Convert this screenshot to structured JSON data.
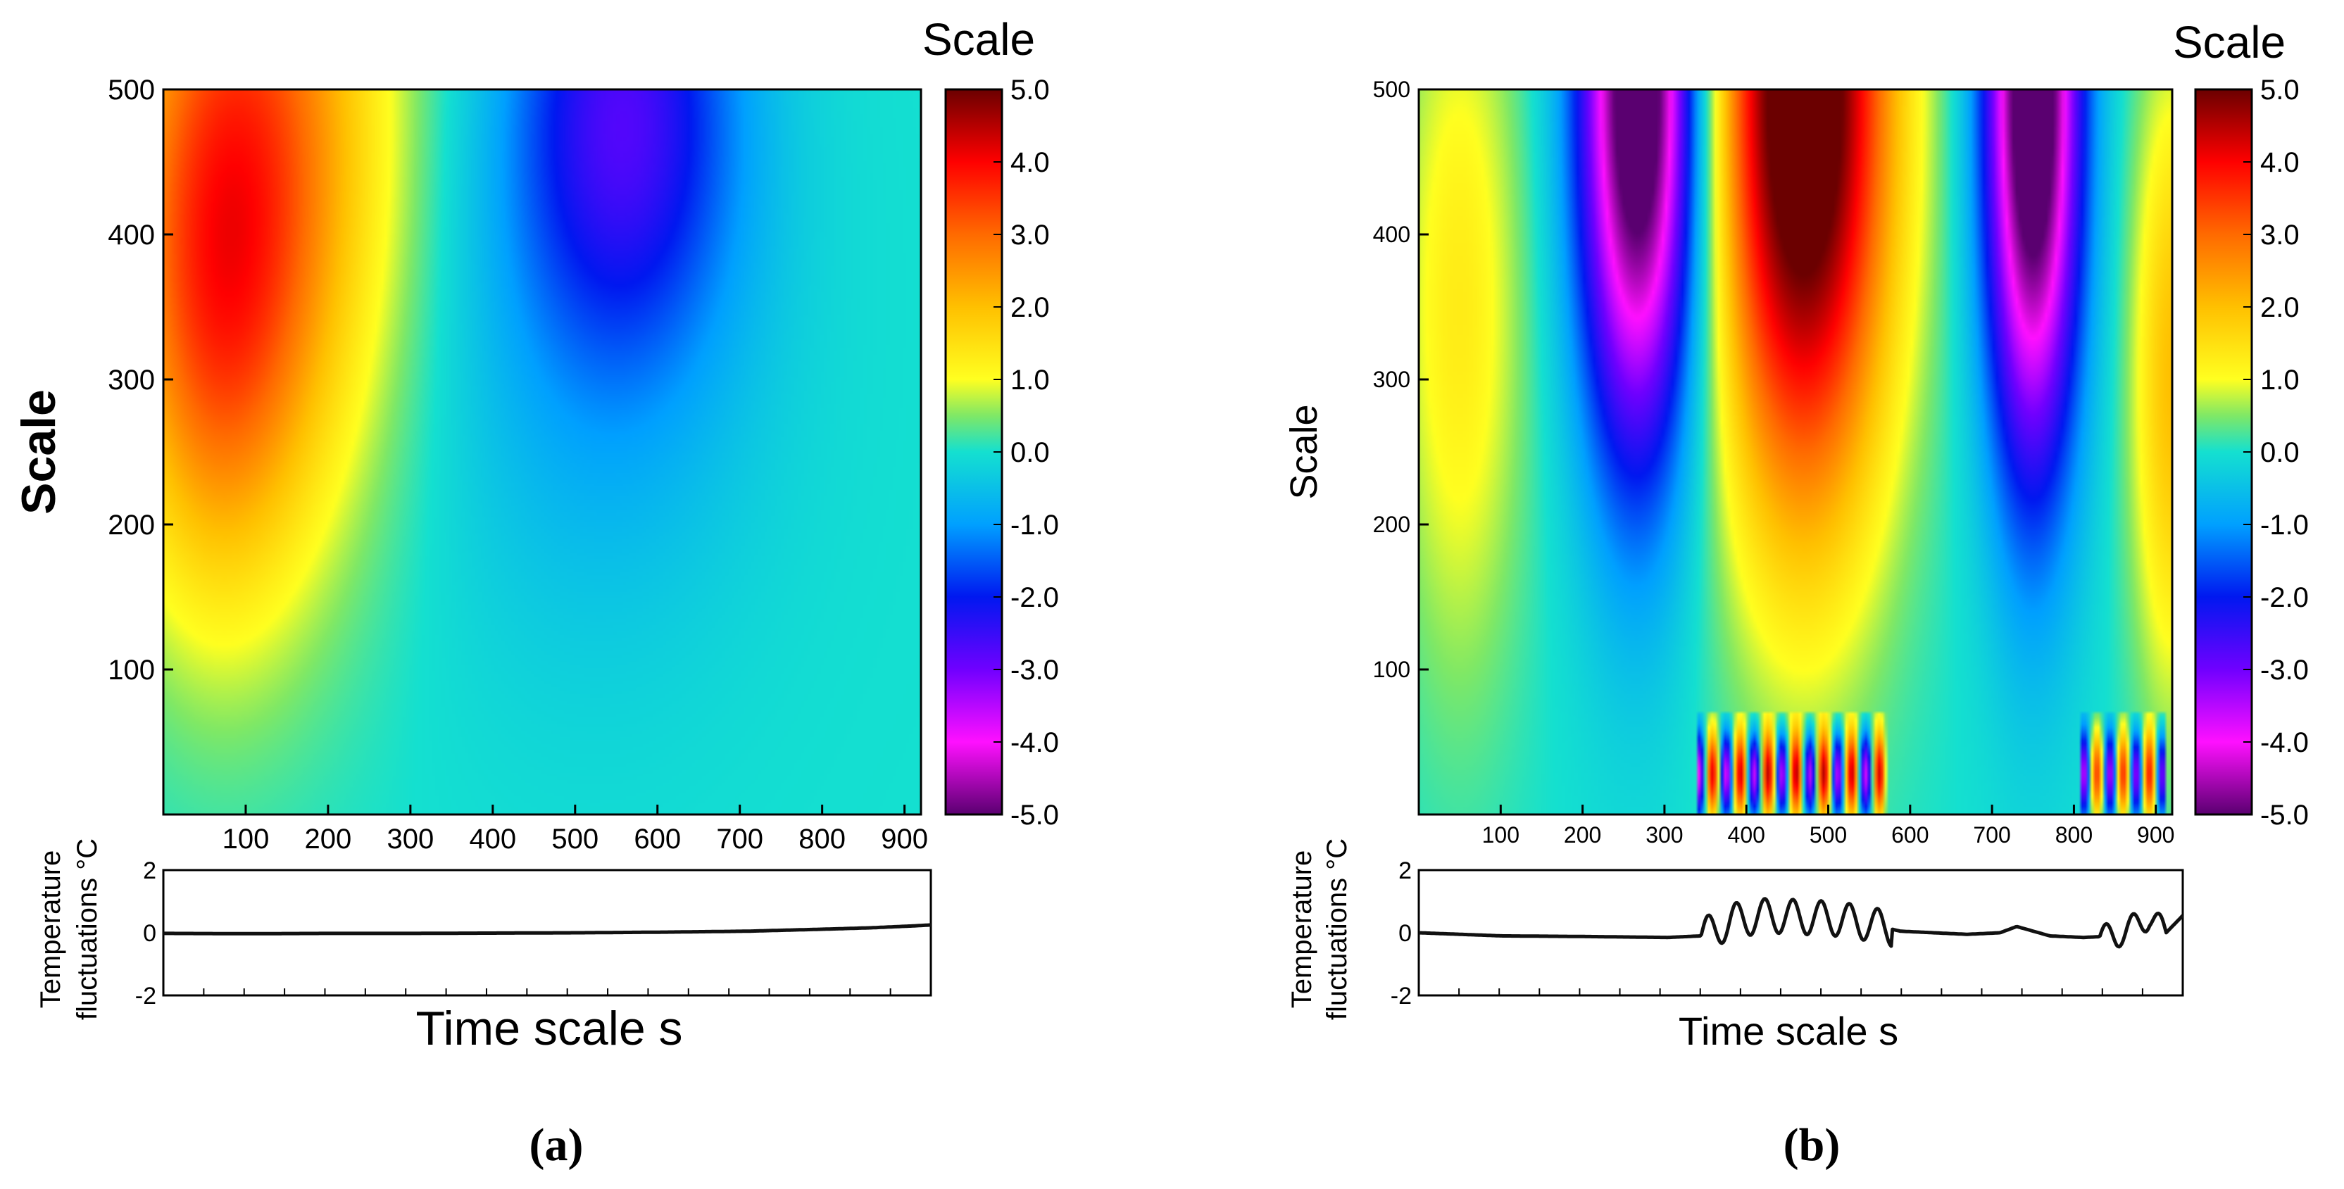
{
  "chart_data": [
    {
      "type": "heatmap",
      "panel_label": "(a)",
      "colorbar_title": "Scale",
      "ylabel": "Scale",
      "xlabel": "Time scale s",
      "x_ticks": [
        "100",
        "200",
        "300",
        "400",
        "500",
        "600",
        "700",
        "800",
        "900"
      ],
      "y_ticks": [
        "100",
        "200",
        "300",
        "400",
        "500"
      ],
      "xlim": [
        0,
        920
      ],
      "ylim": [
        0,
        500
      ],
      "colorbar_ticks": [
        "5.0",
        "4.0",
        "3.0",
        "2.0",
        "1.0",
        "0.0",
        "-1.0",
        "-2.0",
        "-3.0",
        "-4.0",
        "-5.0"
      ],
      "colorbar_range": [
        -5,
        5
      ],
      "features": [
        {
          "x": 110,
          "y": 460,
          "value": 3.0,
          "spread_x": 170,
          "spread_y": 260
        },
        {
          "x": 60,
          "y": 330,
          "value": 1.6,
          "spread_x": 110,
          "spread_y": 200
        },
        {
          "x": 560,
          "y": 490,
          "value": -2.3,
          "spread_x": 140,
          "spread_y": 170
        },
        {
          "x": 520,
          "y": 330,
          "value": -0.7,
          "spread_x": 220,
          "spread_y": 230
        }
      ],
      "trace": {
        "ylabel": "Temperature\nfluctuations °C",
        "ylabel_line1": "Temperature",
        "ylabel_line2": "fluctuations °C",
        "y_ticks": [
          "2",
          "0",
          "-2"
        ],
        "ylim": [
          -2,
          2
        ],
        "x": [
          0,
          100,
          200,
          300,
          400,
          500,
          600,
          700,
          800,
          850,
          900,
          920
        ],
        "y": [
          -0.02,
          -0.03,
          -0.02,
          -0.02,
          -0.01,
          0.0,
          0.02,
          0.05,
          0.12,
          0.16,
          0.22,
          0.25
        ]
      }
    },
    {
      "type": "heatmap",
      "panel_label": "(b)",
      "colorbar_title": "Scale",
      "ylabel": "Scale",
      "xlabel": "Time scale s",
      "x_ticks": [
        "100",
        "200",
        "300",
        "400",
        "500",
        "600",
        "700",
        "800",
        "900"
      ],
      "y_ticks": [
        "100",
        "200",
        "300",
        "400",
        "500"
      ],
      "xlim": [
        0,
        920
      ],
      "ylim": [
        0,
        500
      ],
      "colorbar_ticks": [
        "5.0",
        "4.0",
        "3.0",
        "2.0",
        "1.0",
        "0.0",
        "-1.0",
        "-2.0",
        "-3.0",
        "-4.0",
        "-5.0"
      ],
      "colorbar_range": [
        -5,
        5
      ],
      "features": [
        {
          "x": 470,
          "y": 500,
          "value": 6.0,
          "spread_x": 110,
          "spread_y": 300
        },
        {
          "x": 270,
          "y": 500,
          "value": -6.0,
          "spread_x": 75,
          "spread_y": 260
        },
        {
          "x": 750,
          "y": 500,
          "value": -6.0,
          "spread_x": 60,
          "spread_y": 270
        },
        {
          "x": 50,
          "y": 350,
          "value": 1.3,
          "spread_x": 80,
          "spread_y": 260
        },
        {
          "x": 920,
          "y": 300,
          "value": 2.0,
          "spread_x": 50,
          "spread_y": 220
        }
      ],
      "oscillation_bands": [
        {
          "x_start": 350,
          "x_end": 560,
          "period": 34,
          "amplitude": 4.0
        },
        {
          "x_start": 820,
          "x_end": 900,
          "period": 32,
          "amplitude": 3.5
        }
      ],
      "trace": {
        "ylabel": "Temperature\nfluctuations °C",
        "ylabel_line1": "Temperature",
        "ylabel_line2": "fluctuations °C",
        "y_ticks": [
          "2",
          "0",
          "-2"
        ],
        "ylim": [
          -2,
          2
        ],
        "x": [
          0,
          100,
          200,
          300,
          340,
          380,
          420,
          460,
          500,
          540,
          580,
          620,
          660,
          700,
          720,
          760,
          800,
          840,
          880,
          900,
          920
        ],
        "y": [
          0.0,
          -0.1,
          -0.12,
          -0.15,
          -0.1,
          0.4,
          0.55,
          0.5,
          0.45,
          0.3,
          0.05,
          0.0,
          -0.05,
          0.0,
          0.2,
          -0.1,
          -0.15,
          -0.1,
          0.5,
          0.0,
          0.55
        ],
        "oscillation_bands": [
          {
            "x_start": 340,
            "x_end": 570,
            "period": 34,
            "amplitude": 0.55
          },
          {
            "x_start": 820,
            "x_end": 900,
            "period": 32,
            "amplitude": 0.4
          }
        ]
      }
    }
  ]
}
